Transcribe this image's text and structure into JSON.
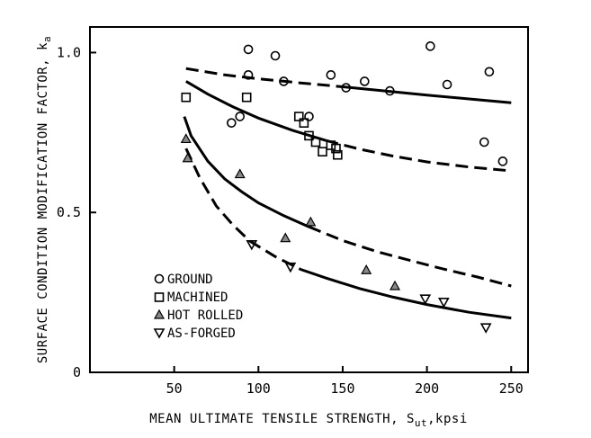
{
  "chart_data": {
    "type": "scatter",
    "title": "",
    "xlabel": "MEAN ULTIMATE TENSILE STRENGTH, S",
    "xlabel_sub": "ut",
    "xlabel_suffix": ",kpsi",
    "ylabel": "SURFACE CONDITION MODIFICATION FACTOR, k",
    "ylabel_sub": "a",
    "xlim": [
      0,
      260
    ],
    "ylim": [
      0,
      1.08
    ],
    "xticks": [
      50,
      100,
      150,
      200,
      250
    ],
    "xtick_labels": [
      "50",
      "100",
      "150",
      "200",
      "250"
    ],
    "yticks": [
      0,
      0.5,
      1.0
    ],
    "ytick_labels": [
      "0",
      "0.5",
      "1.0"
    ],
    "grid": false,
    "legend_position": "lower-left",
    "series": [
      {
        "name": "GROUND",
        "marker": "circle",
        "points": [
          [
            84,
            0.78
          ],
          [
            89,
            0.8
          ],
          [
            94,
            1.01
          ],
          [
            94,
            0.93
          ],
          [
            110,
            0.99
          ],
          [
            115,
            0.91
          ],
          [
            130,
            0.8
          ],
          [
            143,
            0.93
          ],
          [
            152,
            0.89
          ],
          [
            163,
            0.91
          ],
          [
            178,
            0.88
          ],
          [
            202,
            1.02
          ],
          [
            212,
            0.9
          ],
          [
            234,
            0.72
          ],
          [
            237,
            0.94
          ],
          [
            245,
            0.66
          ]
        ]
      },
      {
        "name": "MACHINED",
        "marker": "square",
        "points": [
          [
            57,
            0.86
          ],
          [
            93,
            0.86
          ],
          [
            124,
            0.8
          ],
          [
            127,
            0.78
          ],
          [
            130,
            0.74
          ],
          [
            134,
            0.72
          ],
          [
            138,
            0.69
          ],
          [
            143,
            0.71
          ],
          [
            146,
            0.7
          ],
          [
            147,
            0.68
          ]
        ]
      },
      {
        "name": "HOT ROLLED",
        "marker": "triangle-up",
        "points": [
          [
            57,
            0.73
          ],
          [
            58,
            0.67
          ],
          [
            89,
            0.62
          ],
          [
            116,
            0.42
          ],
          [
            131,
            0.47
          ],
          [
            164,
            0.32
          ],
          [
            181,
            0.27
          ]
        ]
      },
      {
        "name": "AS-FORGED",
        "marker": "triangle-down",
        "points": [
          [
            96,
            0.4
          ],
          [
            119,
            0.33
          ],
          [
            199,
            0.23
          ],
          [
            210,
            0.22
          ],
          [
            235,
            0.14
          ]
        ]
      }
    ],
    "curves": [
      {
        "name": "GROUND",
        "style": "dashed-solid",
        "points": [
          [
            57,
            0.95
          ],
          [
            80,
            0.93
          ],
          [
            100,
            0.918
          ],
          [
            125,
            0.905
          ],
          [
            150,
            0.893
          ],
          [
            175,
            0.88
          ],
          [
            200,
            0.867
          ],
          [
            225,
            0.855
          ],
          [
            250,
            0.843
          ]
        ]
      },
      {
        "name": "MACHINED",
        "style": "solid-dashed",
        "points": [
          [
            57,
            0.91
          ],
          [
            70,
            0.87
          ],
          [
            85,
            0.83
          ],
          [
            100,
            0.795
          ],
          [
            120,
            0.757
          ],
          [
            140,
            0.725
          ],
          [
            160,
            0.698
          ],
          [
            180,
            0.676
          ],
          [
            200,
            0.658
          ],
          [
            225,
            0.642
          ],
          [
            250,
            0.63
          ]
        ]
      },
      {
        "name": "HOT ROLLED",
        "style": "solid-dashed",
        "points": [
          [
            56,
            0.8
          ],
          [
            60,
            0.74
          ],
          [
            70,
            0.66
          ],
          [
            80,
            0.605
          ],
          [
            90,
            0.565
          ],
          [
            100,
            0.53
          ],
          [
            115,
            0.49
          ],
          [
            130,
            0.455
          ],
          [
            150,
            0.412
          ],
          [
            170,
            0.378
          ],
          [
            190,
            0.35
          ],
          [
            210,
            0.323
          ],
          [
            230,
            0.298
          ],
          [
            250,
            0.27
          ]
        ]
      },
      {
        "name": "AS-FORGED",
        "style": "dashed-solid",
        "points": [
          [
            57,
            0.7
          ],
          [
            65,
            0.61
          ],
          [
            75,
            0.52
          ],
          [
            85,
            0.46
          ],
          [
            95,
            0.41
          ],
          [
            110,
            0.362
          ],
          [
            125,
            0.322
          ],
          [
            140,
            0.295
          ],
          [
            160,
            0.262
          ],
          [
            180,
            0.235
          ],
          [
            200,
            0.212
          ],
          [
            225,
            0.188
          ],
          [
            250,
            0.17
          ]
        ]
      }
    ]
  }
}
